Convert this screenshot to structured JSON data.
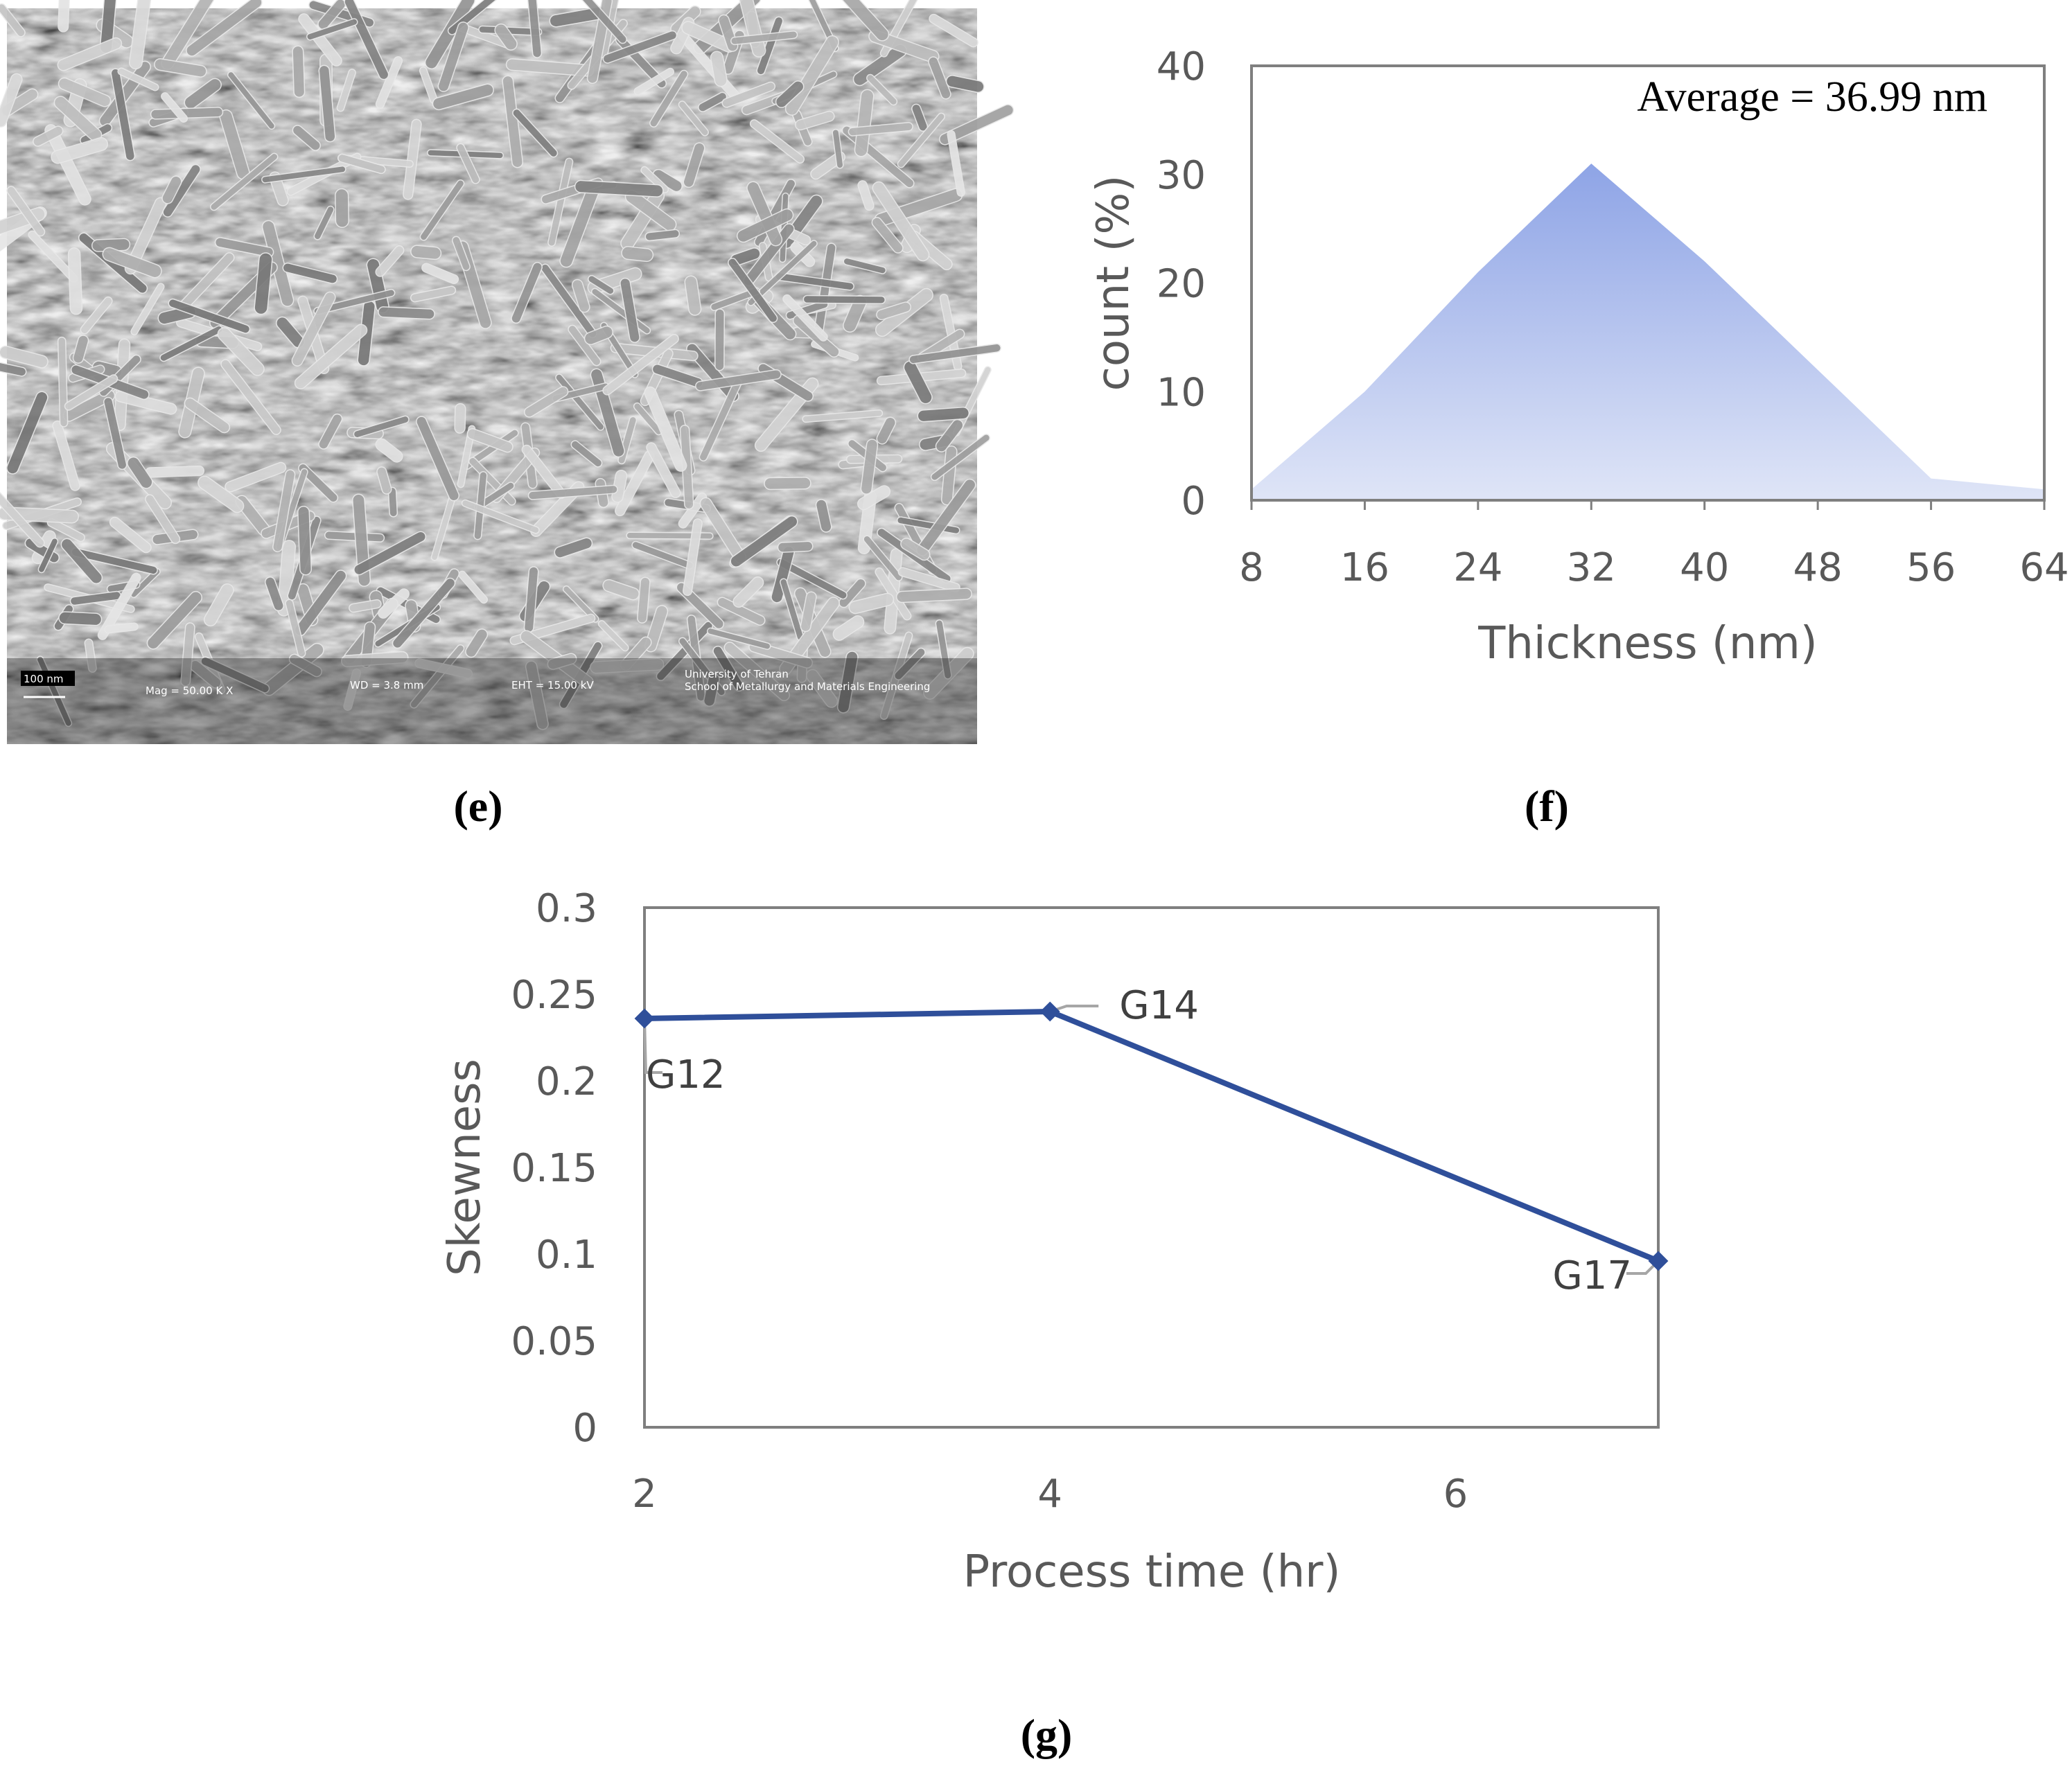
{
  "panels": {
    "e": {
      "label": "(e)"
    },
    "f": {
      "label": "(f)"
    },
    "g": {
      "label": "(g)"
    }
  },
  "sem": {
    "scale_bar": "100 nm",
    "mag": "Mag = 50.00 K X",
    "wd": "WD = 3.8 mm",
    "eht": "EHT = 15.00 kV",
    "institution_line1": "University of Tehran",
    "institution_line2": "School of Metallurgy and Materials Engineering"
  },
  "colors": {
    "area_top": "#8ea4e6",
    "area_bottom": "#dfe5f7",
    "line": "#2f4f9a",
    "frame": "#7f7f7f",
    "leader": "#a6a6a6"
  },
  "chart_data": [
    {
      "id": "f",
      "type": "area",
      "title": "",
      "xlabel": "Thickness (nm)",
      "ylabel": "count (%)",
      "annotation": "Average = 36.99 nm",
      "x": [
        8,
        16,
        24,
        32,
        40,
        48,
        56,
        64
      ],
      "values": [
        1,
        10,
        21,
        31,
        22,
        12,
        2,
        1
      ],
      "xlim": [
        8,
        64
      ],
      "ylim": [
        0,
        40
      ],
      "xticks": [
        "8",
        "16",
        "24",
        "32",
        "40",
        "48",
        "56",
        "64"
      ],
      "yticks": [
        "0",
        "10",
        "20",
        "30",
        "40"
      ],
      "grid": false
    },
    {
      "id": "g",
      "type": "line",
      "title": "",
      "xlabel": "Process time (hr)",
      "ylabel": "Skewness",
      "x": [
        2,
        4,
        7
      ],
      "values": [
        0.236,
        0.24,
        0.096
      ],
      "point_labels": [
        "G12",
        "G14",
        "G17"
      ],
      "xlim": [
        2,
        7
      ],
      "ylim": [
        0,
        0.3
      ],
      "xticks": [
        "2",
        "4",
        "6"
      ],
      "yticks": [
        "0",
        "0.05",
        "0.1",
        "0.15",
        "0.2",
        "0.25",
        "0.3"
      ],
      "grid": false
    }
  ]
}
